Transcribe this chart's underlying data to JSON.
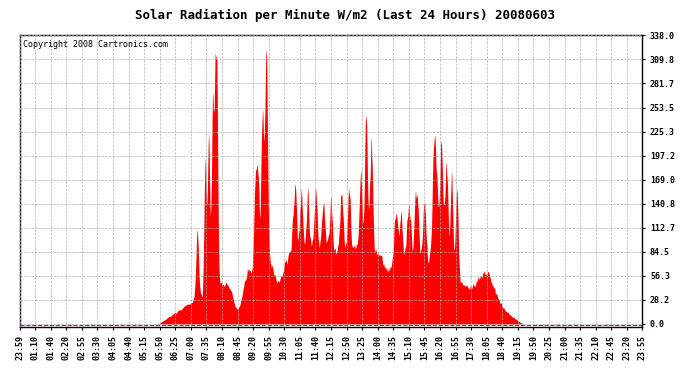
{
  "title": "Solar Radiation per Minute W/m2 (Last 24 Hours) 20080603",
  "copyright": "Copyright 2008 Cartronics.com",
  "fill_color": "#FF0000",
  "background_color": "#FFFFFF",
  "grid_color": "#AAAAAA",
  "border_color": "#000000",
  "y_tick_labels": [
    "0.0",
    "28.2",
    "56.3",
    "84.5",
    "112.7",
    "140.8",
    "169.0",
    "197.2",
    "225.3",
    "253.5",
    "281.7",
    "309.8",
    "338.0"
  ],
  "y_tick_values": [
    0.0,
    28.2,
    56.3,
    84.5,
    112.7,
    140.8,
    169.0,
    197.2,
    225.3,
    253.5,
    281.7,
    309.8,
    338.0
  ],
  "ylim": [
    -4.0,
    338.0
  ],
  "x_tick_labels": [
    "23:59",
    "01:10",
    "01:40",
    "02:20",
    "02:55",
    "03:30",
    "04:05",
    "04:40",
    "05:15",
    "05:50",
    "06:25",
    "07:00",
    "07:35",
    "08:10",
    "08:45",
    "09:20",
    "09:55",
    "10:30",
    "11:05",
    "11:40",
    "12:15",
    "12:50",
    "13:25",
    "14:00",
    "14:35",
    "15:10",
    "15:45",
    "16:20",
    "16:55",
    "17:30",
    "18:05",
    "18:40",
    "19:15",
    "19:50",
    "20:25",
    "21:00",
    "21:35",
    "22:10",
    "22:45",
    "23:20",
    "23:55"
  ],
  "title_fontsize": 9,
  "copyright_fontsize": 6,
  "tick_fontsize": 6,
  "n_points": 1440
}
